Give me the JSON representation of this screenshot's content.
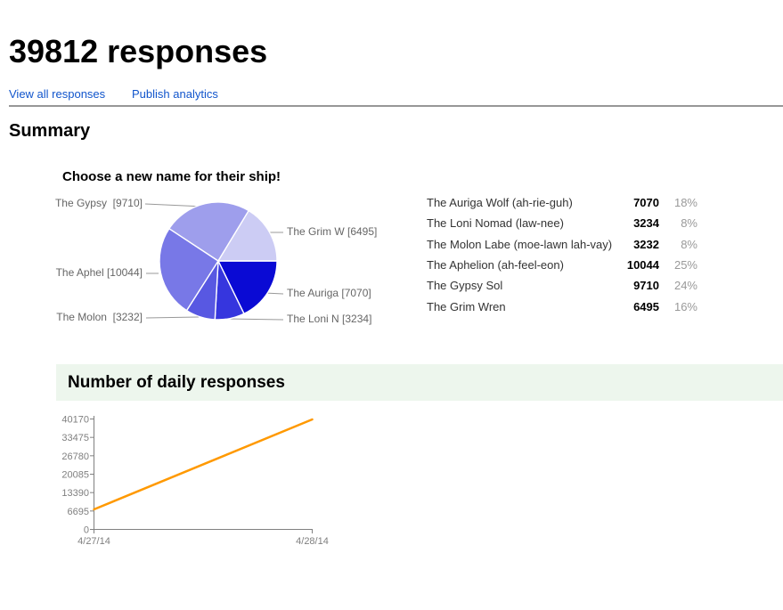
{
  "header": {
    "title": "39812 responses",
    "links": [
      "View all responses",
      "Publish analytics"
    ]
  },
  "summary": {
    "heading": "Summary"
  },
  "question": {
    "title": "Choose a new name for their ship!",
    "legend": {
      "rows": [
        {
          "name": "The Auriga Wolf (ah-rie-guh)",
          "count": "7070",
          "pct": "18%"
        },
        {
          "name": "The Loni Nomad (law-nee)",
          "count": "3234",
          "pct": "8%"
        },
        {
          "name": "The Molon Labe (moe-lawn lah-vay)",
          "count": "3232",
          "pct": "8%"
        },
        {
          "name": "The Aphelion (ah-feel-eon)",
          "count": "10044",
          "pct": "25%"
        },
        {
          "name": "The Gypsy Sol",
          "count": "9710",
          "pct": "24%"
        },
        {
          "name": "The Grim Wren",
          "count": "6495",
          "pct": "16%"
        }
      ]
    }
  },
  "daily": {
    "heading": "Number of daily responses"
  },
  "chart_data": [
    {
      "type": "pie",
      "title": "Choose a new name for their ship!",
      "start": "3-oclock-clockwise",
      "slices": [
        {
          "label": "The Auriga [7070]",
          "value": 7070,
          "pct": 18,
          "color": "#0a0ad4"
        },
        {
          "label": "The Loni N [3234]",
          "value": 3234,
          "pct": 8,
          "color": "#3636de"
        },
        {
          "label": "The Molon  [3232]",
          "value": 3232,
          "pct": 8,
          "color": "#5858e2"
        },
        {
          "label": "The Aphel [10044]",
          "value": 10044,
          "pct": 25,
          "color": "#7878e7"
        },
        {
          "label": "The Gypsy  [9710]",
          "value": 9710,
          "pct": 24,
          "color": "#9e9eec"
        },
        {
          "label": "The Grim W [6495]",
          "value": 6495,
          "pct": 16,
          "color": "#ccccf4"
        }
      ],
      "slice_border_color": "#ffffff",
      "leader_line_color": "#999999",
      "label_color": "#666666"
    },
    {
      "type": "line",
      "title": "Number of daily responses",
      "x": [
        "4/27/14",
        "4/28/14"
      ],
      "values": [
        7300,
        40000
      ],
      "yticks": [
        0,
        6695,
        13390,
        20085,
        26780,
        33475,
        40170
      ],
      "ylim": [
        0,
        40170
      ],
      "line_color": "#ff9900",
      "axis_color": "#808080",
      "tick_label_color": "#7f7f7f",
      "grid": false,
      "legend_position": "none"
    }
  ]
}
